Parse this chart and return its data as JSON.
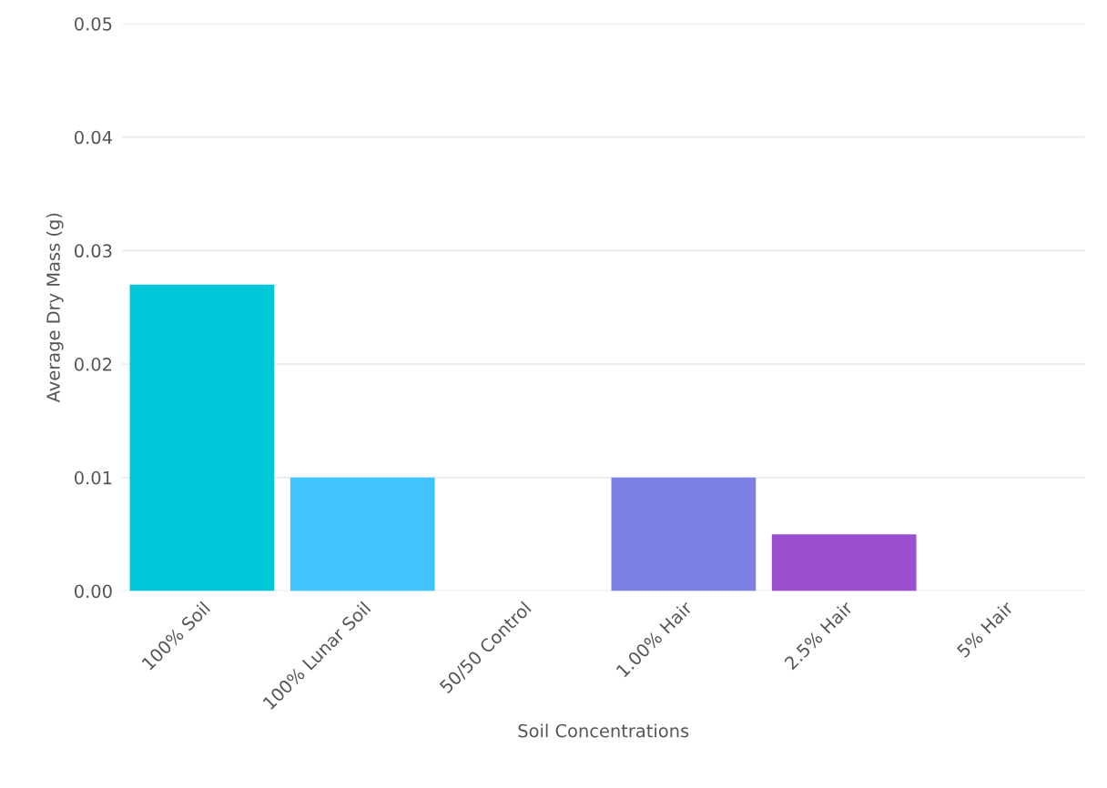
{
  "chart_data": {
    "type": "bar",
    "xlabel": "Soil Concentrations",
    "ylabel": "Average Dry Mass (g)",
    "categories": [
      "100% Soil",
      "100% Lunar Soil",
      "50/50 Control",
      "1.00% Hair",
      "2.5% Hair",
      "5% Hair"
    ],
    "values": [
      0.027,
      0.01,
      0,
      0.01,
      0.005,
      0
    ],
    "colors": [
      "#00c8d8",
      "#40c4ff",
      "#5ac8fa",
      "#7b7fe6",
      "#9a4fd0",
      "#b04fd0"
    ],
    "ylim": [
      0,
      0.05
    ],
    "yticks": [
      {
        "value": 0,
        "label": "0.00"
      },
      {
        "value": 0.01,
        "label": "0.01"
      },
      {
        "value": 0.02,
        "label": "0.02"
      },
      {
        "value": 0.03,
        "label": "0.03"
      },
      {
        "value": 0.04,
        "label": "0.04"
      },
      {
        "value": 0.05,
        "label": "0.05"
      }
    ],
    "grid": "y"
  }
}
